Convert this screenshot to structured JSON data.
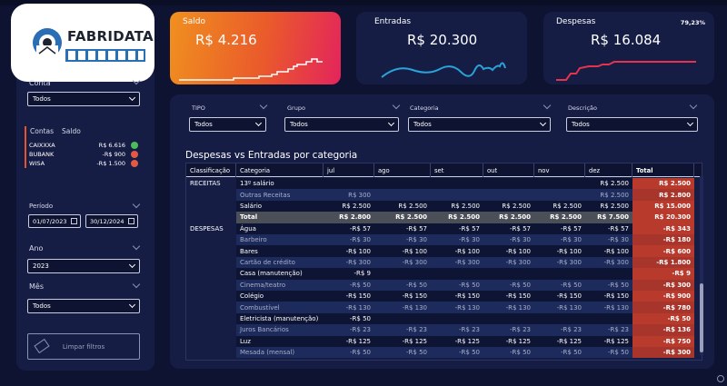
{
  "logo": {
    "text": "FABRIDATA"
  },
  "sidebar": {
    "conta": {
      "label": "Conta",
      "value": "Todos"
    },
    "accounts": {
      "col1": "Contas",
      "col2": "Saldo",
      "rows": [
        {
          "name": "CAIXXXA",
          "value": "R$ 6.616",
          "color": "#4cbb5a"
        },
        {
          "name": "BUBANK",
          "value": "-R$ 900",
          "color": "#e25a45"
        },
        {
          "name": "WISA",
          "value": "-R$ 1.500",
          "color": "#e25a45"
        }
      ]
    },
    "periodo": {
      "label": "Período",
      "start": "01/07/2023",
      "end": "30/12/2024"
    },
    "ano": {
      "label": "Ano",
      "value": "2023"
    },
    "mes": {
      "label": "Mês",
      "value": "Todos"
    },
    "clear_label": "Limpar filtros"
  },
  "cards": {
    "saldo": {
      "title": "Saldo",
      "value": "R$ 4.216"
    },
    "entradas": {
      "title": "Entradas",
      "value": "R$ 20.300"
    },
    "despesas": {
      "title": "Despesas",
      "value": "R$ 16.084",
      "pct": "79,23%"
    }
  },
  "filters": {
    "tipo": {
      "label": "TIPO",
      "value": "Todos"
    },
    "grupo": {
      "label": "Grupo",
      "value": "Todos"
    },
    "categoria": {
      "label": "Categoria",
      "value": "Todos"
    },
    "descricao": {
      "label": "Descrição",
      "value": "Todos"
    }
  },
  "table": {
    "title": "Despesas vs Entradas por categoria",
    "headers": [
      "Classificação",
      "Categoria",
      "jul",
      "ago",
      "set",
      "out",
      "nov",
      "dez",
      "Total"
    ],
    "rows": [
      {
        "cls": "RECEITAS",
        "cat": "13º salário",
        "vals": [
          "",
          "",
          "",
          "",
          "",
          "R$ 2.500"
        ],
        "total": "R$ 2.500"
      },
      {
        "cls": "",
        "cat": "Outras Receitas",
        "vals": [
          "R$ 300",
          "",
          "",
          "",
          "",
          "R$ 2.500"
        ],
        "total": "R$ 2.800",
        "dim": true
      },
      {
        "cls": "",
        "cat": "Salário",
        "vals": [
          "R$ 2.500",
          "R$ 2.500",
          "R$ 2.500",
          "R$ 2.500",
          "R$ 2.500",
          "R$ 2.500"
        ],
        "total": "R$ 15.000"
      },
      {
        "cls": "",
        "cat": "Total",
        "vals": [
          "R$ 2.800",
          "R$ 2.500",
          "R$ 2.500",
          "R$ 2.500",
          "R$ 2.500",
          "R$ 7.500"
        ],
        "total": "R$ 20.300",
        "subtotal": true
      },
      {
        "cls": "DESPESAS",
        "cat": "Água",
        "vals": [
          "-R$ 57",
          "-R$ 57",
          "-R$ 57",
          "-R$ 57",
          "-R$ 57",
          "-R$ 57"
        ],
        "total": "-R$ 343"
      },
      {
        "cls": "",
        "cat": "Barbeiro",
        "vals": [
          "-R$ 30",
          "-R$ 30",
          "-R$ 30",
          "-R$ 30",
          "-R$ 30",
          "-R$ 30"
        ],
        "total": "-R$ 180",
        "dim": true
      },
      {
        "cls": "",
        "cat": "Bares",
        "vals": [
          "-R$ 100",
          "-R$ 100",
          "-R$ 100",
          "-R$ 100",
          "-R$ 100",
          "-R$ 100"
        ],
        "total": "-R$ 600"
      },
      {
        "cls": "",
        "cat": "Cartão de crédito",
        "vals": [
          "-R$ 300",
          "-R$ 300",
          "-R$ 300",
          "-R$ 300",
          "-R$ 300",
          "-R$ 300"
        ],
        "total": "-R$ 1.800",
        "dim": true
      },
      {
        "cls": "",
        "cat": "Casa (manutenção)",
        "vals": [
          "-R$ 9",
          "",
          "",
          "",
          "",
          ""
        ],
        "total": "-R$ 9"
      },
      {
        "cls": "",
        "cat": "Cinema/teatro",
        "vals": [
          "-R$ 50",
          "-R$ 50",
          "-R$ 50",
          "-R$ 50",
          "-R$ 50",
          "-R$ 50"
        ],
        "total": "-R$ 300",
        "dim": true
      },
      {
        "cls": "",
        "cat": "Colégio",
        "vals": [
          "-R$ 150",
          "-R$ 150",
          "-R$ 150",
          "-R$ 150",
          "-R$ 150",
          "-R$ 150"
        ],
        "total": "-R$ 900"
      },
      {
        "cls": "",
        "cat": "Combustível",
        "vals": [
          "-R$ 130",
          "-R$ 130",
          "-R$ 130",
          "-R$ 130",
          "-R$ 130",
          "-R$ 130"
        ],
        "total": "-R$ 780",
        "dim": true
      },
      {
        "cls": "",
        "cat": "Eletricista (manutenção)",
        "vals": [
          "-R$ 50",
          "",
          "",
          "",
          "",
          ""
        ],
        "total": "-R$ 50"
      },
      {
        "cls": "",
        "cat": "Juros Bancários",
        "vals": [
          "-R$ 23",
          "-R$ 23",
          "-R$ 23",
          "-R$ 23",
          "-R$ 23",
          "-R$ 23"
        ],
        "total": "-R$ 136",
        "dim": true
      },
      {
        "cls": "",
        "cat": "Luz",
        "vals": [
          "-R$ 125",
          "-R$ 125",
          "-R$ 125",
          "-R$ 125",
          "-R$ 125",
          "-R$ 125"
        ],
        "total": "-R$ 750"
      },
      {
        "cls": "",
        "cat": "Mesada (mensal)",
        "vals": [
          "-R$ 50",
          "-R$ 50",
          "-R$ 50",
          "-R$ 50",
          "-R$ 50",
          "-R$ 50"
        ],
        "total": "-R$ 300",
        "dim": true
      }
    ]
  },
  "colors": {
    "accent": "#e5532f",
    "card_line_entradas": "#2aa3d8",
    "card_line_despesas": "#e5334d",
    "total_col": "#b0362a"
  }
}
